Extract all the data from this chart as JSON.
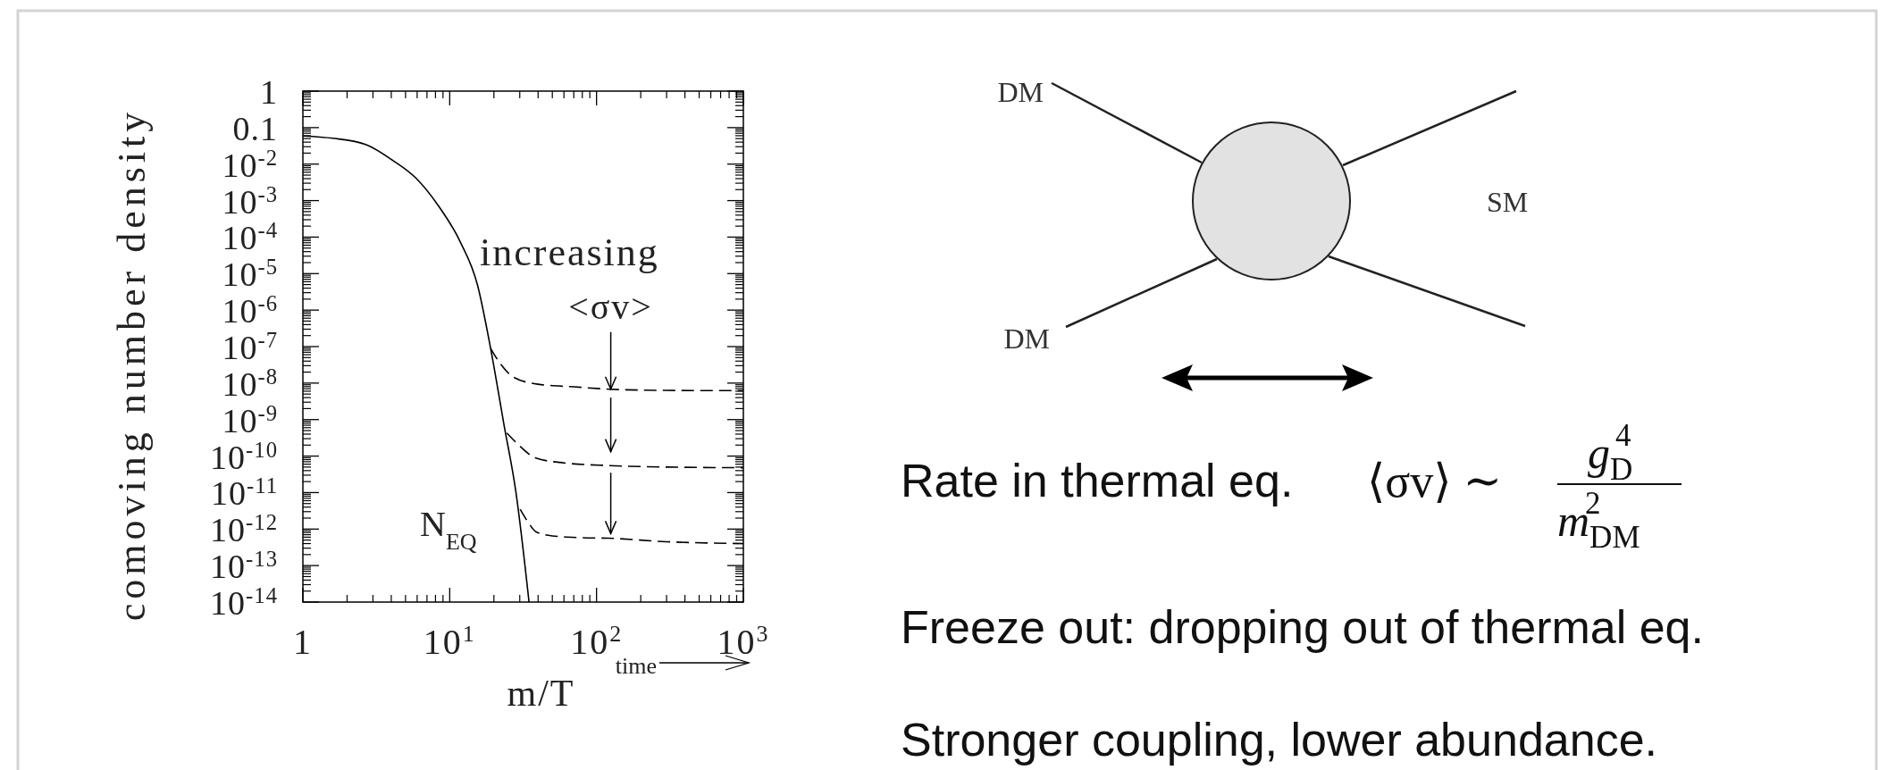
{
  "chart_data": {
    "type": "line",
    "xlabel": "m/T",
    "ylabel": "comoving number density",
    "log": "xy",
    "xlim": [
      1,
      1000
    ],
    "ylim": [
      1e-14,
      1
    ],
    "xticks": [
      1,
      {
        "value": 10,
        "label": "10$^{1}$"
      },
      {
        "value": 100,
        "label": "10$^{2}$"
      },
      {
        "value": 1000,
        "label": "10$^{3}$"
      }
    ],
    "yticks": [
      1,
      0.1,
      {
        "value": 0.01,
        "label": "10$^{-2}$"
      },
      {
        "value": 0.001,
        "label": "10$^{-3}$"
      },
      {
        "value": 0.0001,
        "label": "10$^{-4}$"
      },
      {
        "value": 1e-05,
        "label": "10$^{-5}$"
      },
      {
        "value": 1e-06,
        "label": "10$^{-6}$"
      },
      {
        "value": 1e-07,
        "label": "10$^{-7}$"
      },
      {
        "value": 1e-08,
        "label": "10$^{-8}$"
      },
      {
        "value": 1e-09,
        "label": "10$^{-9}$"
      },
      {
        "value": 1e-10,
        "label": "10$^{-10}$"
      },
      {
        "value": 1e-11,
        "label": "10$^{-11}$"
      },
      {
        "value": 1e-12,
        "label": "10$^{-12}$"
      },
      {
        "value": 1e-13,
        "label": "10$^{-13}$"
      },
      {
        "value": 1e-14,
        "label": "10$^{-14}$"
      }
    ],
    "grid": false,
    "series": [
      {
        "color": "#000000",
        "line_style": "solid",
        "x": [
          1,
          1.6,
          2.7,
          4.1,
          5.9,
          8.3,
          11.7,
          15.5,
          19,
          23.4,
          28.2,
          34.7
        ],
        "values": [
          0.059,
          0.051,
          0.034,
          0.0126,
          0.0041,
          0.00076,
          7.9e-05,
          4.7e-06,
          8.9e-08,
          7.4e-10,
          1.07e-11,
          1e-14
        ]
      },
      {
        "color": "#000000",
        "line_style": "dashed",
        "x": [
          19,
          22,
          27.2,
          40,
          70,
          122,
          300,
          1000
        ],
        "values": [
          8.9e-08,
          3.5e-08,
          1.45e-08,
          9.3e-09,
          7.9e-09,
          6.8e-09,
          6.3e-09,
          6.2e-09
        ]
      },
      {
        "color": "#000000",
        "line_style": "dashed",
        "x": [
          24.5,
          28.2,
          38.6,
          60,
          122,
          300,
          1000
        ],
        "values": [
          4.3e-10,
          2.4e-10,
          8.9e-11,
          6.5e-11,
          5.5e-11,
          5e-11,
          4.8e-11
        ]
      },
      {
        "color": "#000000",
        "line_style": "dashed",
        "x": [
          30.2,
          34,
          38.6,
          50,
          80,
          122,
          300,
          1000
        ],
        "values": [
          3.5e-12,
          1.6e-12,
          8.5e-13,
          6.5e-13,
          5.8e-13,
          5.6e-13,
          4.5e-13,
          4e-13
        ]
      }
    ],
    "annotations": [
      "increasing",
      {
        "text": "<σv>",
        "x": 125,
        "y": 6.8e-09
      },
      "N$_{EQ}$",
      "time",
      "DM",
      "DM",
      "SM",
      "Rate in thermal eq.",
      "⟨σv⟩ ∼",
      "g$_{D}$$^{4}$",
      "m$_{DM}$$^{2}$",
      "Freeze out: dropping out of thermal eq.",
      "Stronger coupling, lower abundance."
    ]
  }
}
